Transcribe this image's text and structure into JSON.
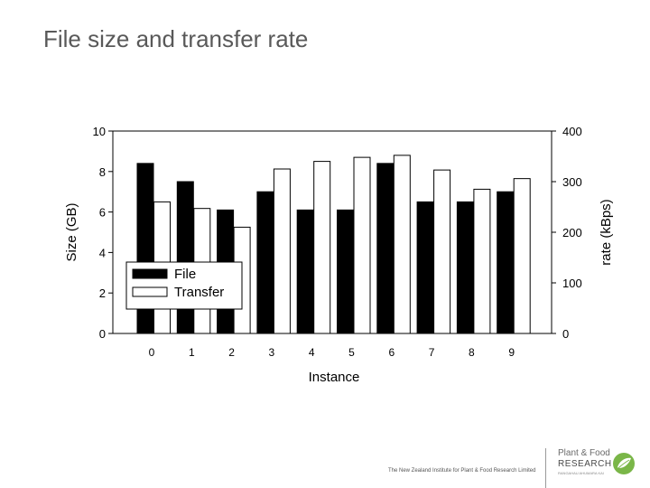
{
  "slide": {
    "title": "File size and transfer rate",
    "footer": "The New Zealand Institute for Plant & Food Research Limited"
  },
  "logo": {
    "line1": "Plant & Food",
    "line2": "RESEARCH",
    "tagline": "RANGAHAU AHUMARA KAI",
    "leaf_color": "#7ab648"
  },
  "chart_data": {
    "type": "bar",
    "xlabel": "Instance",
    "ylabel": "Size (GB)",
    "y2label": "rate (kBps)",
    "categories": [
      "0",
      "1",
      "2",
      "3",
      "4",
      "5",
      "6",
      "7",
      "8",
      "9"
    ],
    "ylim": [
      0,
      10
    ],
    "y2lim": [
      0,
      400
    ],
    "yticks": [
      "0",
      "2",
      "4",
      "6",
      "8",
      "10"
    ],
    "y2ticks": [
      "0",
      "100",
      "200",
      "300",
      "400"
    ],
    "series": [
      {
        "name": "File",
        "axis": "left",
        "color": "#000000",
        "values": [
          8.4,
          7.5,
          6.1,
          7.0,
          6.1,
          6.1,
          8.4,
          6.5,
          6.5,
          7.0
        ]
      },
      {
        "name": "Transfer",
        "axis": "right",
        "color": "#ffffff",
        "values": [
          260,
          247,
          210,
          325,
          340,
          348,
          352,
          323,
          285,
          306
        ]
      }
    ],
    "legend_position": "bottom-left",
    "grid": false
  }
}
